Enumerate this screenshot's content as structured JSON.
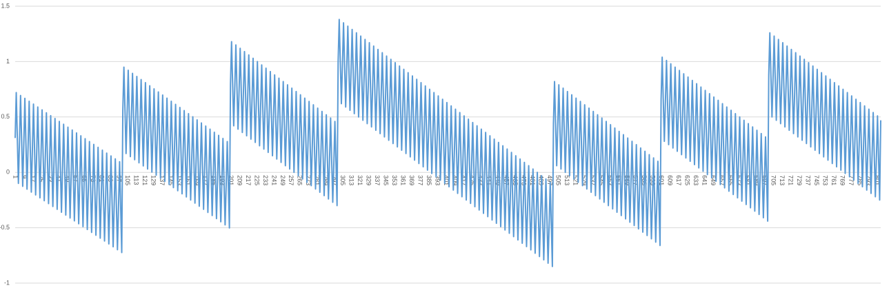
{
  "chart_data": {
    "type": "line",
    "color": "#5b9bd5",
    "grid": true,
    "ylim": [
      -1,
      1.5
    ],
    "yticks": [
      -1,
      -0.5,
      0,
      0.5,
      1,
      1.5
    ],
    "categories": [
      "1",
      null,
      null,
      null,
      null,
      null,
      null,
      null,
      "9",
      null,
      null,
      null,
      null,
      null,
      null,
      null,
      "17",
      null,
      null,
      null,
      null,
      null,
      null,
      null,
      "25",
      null,
      null,
      null,
      null,
      null,
      null,
      null,
      "33",
      null,
      null,
      null,
      null,
      null,
      null,
      null,
      "41",
      null,
      null,
      null,
      null,
      null,
      null,
      null,
      "49",
      null,
      null,
      null,
      null,
      null,
      null,
      null,
      "57",
      null,
      null,
      null,
      null,
      null,
      null,
      null,
      "65",
      null,
      null,
      null,
      null,
      null,
      null,
      null,
      "73",
      null,
      null,
      null,
      null,
      null,
      null,
      null,
      "81",
      null,
      null,
      null,
      null,
      null,
      null,
      null,
      "89",
      null,
      null,
      null,
      null,
      null,
      null,
      null,
      "97",
      null,
      null,
      null,
      null,
      null,
      null,
      null,
      "105",
      null,
      null,
      null,
      null,
      null,
      null,
      null,
      "113",
      null,
      null,
      null,
      null,
      null,
      null,
      null,
      "121",
      null,
      null,
      null,
      null,
      null,
      null,
      null,
      "129",
      null,
      null,
      null,
      null,
      null,
      null,
      null,
      "137",
      null,
      null,
      null,
      null,
      null,
      null,
      null,
      "145",
      null,
      null,
      null,
      null,
      null,
      null,
      null,
      "153",
      null,
      null,
      null,
      null,
      null,
      null,
      null,
      "161",
      null,
      null,
      null,
      null,
      null,
      null,
      null,
      "169",
      null,
      null,
      null,
      null,
      null,
      null,
      null,
      "177",
      null,
      null,
      null,
      null,
      null,
      null,
      null,
      "185",
      null,
      null,
      null,
      null,
      null,
      null,
      null,
      "193",
      null,
      null,
      null,
      null,
      null,
      null,
      null,
      "201",
      null,
      null,
      null,
      null,
      null,
      null,
      null,
      "209",
      null,
      null,
      null,
      null,
      null,
      null,
      null,
      "217",
      null,
      null,
      null,
      null,
      null,
      null,
      null,
      "225",
      null,
      null,
      null,
      null,
      null,
      null,
      null,
      "233",
      null,
      null,
      null,
      null,
      null,
      null,
      null,
      "241",
      null,
      null,
      null,
      null,
      null,
      null,
      null,
      "249",
      null,
      null,
      null,
      null,
      null,
      null,
      null,
      "257",
      null,
      null,
      null,
      null,
      null,
      null,
      null,
      "265",
      null,
      null,
      null,
      null,
      null,
      null,
      null,
      "273",
      null,
      null,
      null,
      null,
      null,
      null,
      null,
      "281",
      null,
      null,
      null,
      null,
      null,
      null,
      null,
      "289",
      null,
      null,
      null,
      null,
      null,
      null,
      null,
      "297",
      null,
      null,
      null,
      null,
      null,
      null,
      null,
      "305",
      null,
      null,
      null,
      null,
      null,
      null,
      null,
      "313",
      null,
      null,
      null,
      null,
      null,
      null,
      null,
      "321",
      null,
      null,
      null,
      null,
      null,
      null,
      null,
      "329",
      null,
      null,
      null,
      null,
      null,
      null,
      null,
      "337",
      null,
      null,
      null,
      null,
      null,
      null,
      null,
      "345",
      null,
      null,
      null,
      null,
      null,
      null,
      null,
      "353",
      null,
      null,
      null,
      null,
      null,
      null,
      null,
      "361",
      null,
      null,
      null,
      null,
      null,
      null,
      null,
      "369",
      null,
      null,
      null,
      null,
      null,
      null,
      null,
      "377",
      null,
      null,
      null,
      null,
      null,
      null,
      null,
      "385",
      null,
      null,
      null,
      null,
      null,
      null,
      null,
      "393",
      null,
      null,
      null,
      null,
      null,
      null,
      null,
      "401",
      null,
      null,
      null,
      null,
      null,
      null,
      null,
      "409",
      null,
      null,
      null,
      null,
      null,
      null,
      null,
      "417",
      null,
      null,
      null,
      null,
      null,
      null,
      null,
      "425",
      null,
      null,
      null,
      null,
      null,
      null,
      null,
      "433",
      null,
      null,
      null,
      null,
      null,
      null,
      null,
      "441",
      null,
      null,
      null,
      null,
      null,
      null,
      null,
      "449",
      null,
      null,
      null,
      null,
      null,
      null,
      null,
      "457",
      null,
      null,
      null,
      null,
      null,
      null,
      null,
      "465",
      null,
      null,
      null,
      null,
      null,
      null,
      null,
      "473",
      null,
      null,
      null,
      null,
      null,
      null,
      null,
      "481",
      null,
      null,
      null,
      null,
      null,
      null,
      null,
      "489",
      null,
      null,
      null,
      null,
      null,
      null,
      null,
      "497",
      null,
      null,
      null,
      null,
      null,
      null,
      null,
      "505",
      null,
      null,
      null,
      null,
      null,
      null,
      null,
      "513",
      null,
      null,
      null,
      null,
      null,
      null,
      null,
      "521",
      null,
      null,
      null,
      null,
      null,
      null,
      null,
      "529",
      null,
      null,
      null,
      null,
      null,
      null,
      null,
      "537",
      null,
      null,
      null,
      null,
      null,
      null,
      null,
      "545",
      null,
      null,
      null,
      null,
      null,
      null,
      null,
      "553",
      null,
      null,
      null,
      null,
      null,
      null,
      null,
      "561",
      null,
      null,
      null,
      null,
      null,
      null,
      null,
      "569",
      null,
      null,
      null,
      null,
      null,
      null,
      null,
      "577",
      null,
      null,
      null,
      null,
      null,
      null,
      null,
      "585",
      null,
      null,
      null,
      null,
      null,
      null,
      null,
      "593",
      null,
      null,
      null,
      null,
      null,
      null,
      null,
      "601",
      null,
      null,
      null,
      null,
      null,
      null,
      null,
      "609",
      null,
      null,
      null,
      null,
      null,
      null,
      null,
      "617",
      null,
      null,
      null,
      null,
      null,
      null,
      null,
      "625",
      null,
      null,
      null,
      null,
      null,
      null,
      null,
      "633",
      null,
      null,
      null,
      null,
      null,
      null,
      null,
      "641",
      null,
      null,
      null,
      null,
      null,
      null,
      null,
      "649",
      null,
      null,
      null,
      null,
      null,
      null,
      null,
      "657",
      null,
      null,
      null,
      null,
      null,
      null,
      null,
      "665",
      null,
      null,
      null,
      null,
      null,
      null,
      null,
      "673",
      null,
      null,
      null,
      null,
      null,
      null,
      null,
      "681",
      null,
      null,
      null,
      null,
      null,
      null,
      null,
      "689",
      null,
      null,
      null,
      null,
      null,
      null,
      null,
      "697",
      null,
      null,
      null,
      null,
      null,
      null,
      null,
      "705",
      null,
      null,
      null,
      null,
      null,
      null,
      null,
      "713",
      null,
      null,
      null,
      null,
      null,
      null,
      null,
      "721",
      null,
      null,
      null,
      null,
      null,
      null,
      null,
      "729",
      null,
      null,
      null,
      null,
      null,
      null,
      null,
      "737",
      null,
      null,
      null,
      null,
      null,
      null,
      null,
      "745",
      null,
      null,
      null,
      null,
      null,
      null,
      null,
      "753",
      null,
      null,
      null,
      null,
      null,
      null,
      null,
      "761",
      null,
      null,
      null,
      null,
      null,
      null,
      null,
      "769",
      null,
      null,
      null,
      null,
      null,
      null,
      null,
      "777",
      null,
      null,
      null,
      null,
      null,
      null,
      null,
      "785",
      null,
      null,
      null,
      null,
      null,
      null,
      null,
      "793",
      null,
      null,
      null,
      null,
      null,
      null,
      null,
      "801",
      null,
      null,
      null,
      null
    ],
    "values": [
      0.31,
      0.72,
      0.31,
      -0.1,
      0.284,
      0.694,
      0.284,
      -0.126,
      0.258,
      0.668,
      0.258,
      -0.152,
      0.232,
      0.642,
      0.232,
      -0.178,
      0.206,
      0.616,
      0.206,
      -0.204,
      0.18,
      0.59,
      0.18,
      -0.23,
      0.154,
      0.564,
      0.154,
      -0.256,
      0.128,
      0.538,
      0.128,
      -0.282,
      0.102,
      0.512,
      0.102,
      -0.308,
      0.076,
      0.486,
      0.076,
      -0.334,
      0.05,
      0.46,
      0.05,
      -0.36,
      0.024,
      0.434,
      0.024,
      -0.386,
      -0.002,
      0.408,
      -0.002,
      -0.412,
      -0.028,
      0.382,
      -0.028,
      -0.438,
      -0.054,
      0.356,
      -0.054,
      -0.464,
      -0.08,
      0.33,
      -0.08,
      -0.49,
      -0.106,
      0.304,
      -0.106,
      -0.516,
      -0.132,
      0.278,
      -0.132,
      -0.542,
      -0.158,
      0.252,
      -0.158,
      -0.568,
      -0.184,
      0.226,
      -0.184,
      -0.594,
      -0.21,
      0.2,
      -0.21,
      -0.62,
      -0.236,
      0.174,
      -0.236,
      -0.646,
      -0.262,
      0.148,
      -0.262,
      -0.672,
      -0.288,
      0.122,
      -0.288,
      -0.698,
      -0.314,
      0.096,
      -0.314,
      -0.724,
      0.56,
      0.95,
      0.56,
      0.17,
      0.532,
      0.922,
      0.532,
      0.142,
      0.504,
      0.894,
      0.504,
      0.114,
      0.476,
      0.866,
      0.476,
      0.086,
      0.448,
      0.838,
      0.448,
      0.058,
      0.42,
      0.81,
      0.42,
      0.03,
      0.392,
      0.782,
      0.392,
      0.002,
      0.364,
      0.754,
      0.364,
      -0.026,
      0.336,
      0.726,
      0.336,
      -0.054,
      0.308,
      0.698,
      0.308,
      -0.082,
      0.28,
      0.67,
      0.28,
      -0.11,
      0.252,
      0.642,
      0.252,
      -0.138,
      0.224,
      0.614,
      0.224,
      -0.166,
      0.196,
      0.586,
      0.196,
      -0.194,
      0.168,
      0.558,
      0.168,
      -0.222,
      0.14,
      0.53,
      0.14,
      -0.25,
      0.112,
      0.502,
      0.112,
      -0.278,
      0.084,
      0.474,
      0.084,
      -0.306,
      0.056,
      0.446,
      0.056,
      -0.334,
      0.028,
      0.418,
      0.028,
      -0.362,
      0,
      0.39,
      0,
      -0.39,
      -0.028,
      0.362,
      -0.028,
      -0.418,
      -0.056,
      0.334,
      -0.056,
      -0.446,
      -0.084,
      0.306,
      -0.084,
      -0.474,
      -0.112,
      0.278,
      -0.112,
      -0.502,
      0.8,
      1.18,
      0.8,
      0.42,
      0.77,
      1.15,
      0.77,
      0.39,
      0.74,
      1.12,
      0.74,
      0.36,
      0.71,
      1.09,
      0.71,
      0.33,
      0.68,
      1.06,
      0.68,
      0.3,
      0.65,
      1.03,
      0.65,
      0.27,
      0.62,
      1,
      0.62,
      0.24,
      0.59,
      0.97,
      0.59,
      0.21,
      0.56,
      0.94,
      0.56,
      0.18,
      0.53,
      0.91,
      0.53,
      0.15,
      0.5,
      0.88,
      0.5,
      0.12,
      0.47,
      0.85,
      0.47,
      0.09,
      0.44,
      0.82,
      0.44,
      0.06,
      0.41,
      0.79,
      0.41,
      0.03,
      0.38,
      0.76,
      0.38,
      0,
      0.35,
      0.73,
      0.35,
      -0.03,
      0.32,
      0.7,
      0.32,
      -0.06,
      0.29,
      0.67,
      0.29,
      -0.09,
      0.26,
      0.64,
      0.26,
      -0.12,
      0.23,
      0.61,
      0.23,
      -0.15,
      0.2,
      0.58,
      0.2,
      -0.18,
      0.17,
      0.55,
      0.17,
      -0.21,
      0.14,
      0.52,
      0.14,
      -0.24,
      0.11,
      0.49,
      0.11,
      -0.27,
      0.08,
      0.46,
      0.08,
      -0.3,
      1,
      1.38,
      1,
      0.62,
      0.97,
      1.35,
      0.97,
      0.59,
      0.94,
      1.32,
      0.94,
      0.56,
      0.91,
      1.29,
      0.91,
      0.53,
      0.88,
      1.26,
      0.88,
      0.5,
      0.85,
      1.23,
      0.85,
      0.47,
      0.82,
      1.2,
      0.82,
      0.44,
      0.79,
      1.17,
      0.79,
      0.41,
      0.76,
      1.14,
      0.76,
      0.38,
      0.73,
      1.11,
      0.73,
      0.35,
      0.7,
      1.08,
      0.7,
      0.32,
      0.67,
      1.05,
      0.67,
      0.29,
      0.64,
      1.02,
      0.64,
      0.26,
      0.61,
      0.99,
      0.61,
      0.23,
      0.58,
      0.96,
      0.58,
      0.2,
      0.55,
      0.93,
      0.55,
      0.17,
      0.52,
      0.9,
      0.52,
      0.14,
      0.49,
      0.87,
      0.49,
      0.11,
      0.46,
      0.84,
      0.46,
      0.08,
      0.43,
      0.81,
      0.43,
      0.05,
      0.4,
      0.78,
      0.4,
      0.02,
      0.37,
      0.75,
      0.37,
      -0.01,
      0.34,
      0.72,
      0.34,
      -0.04,
      0.31,
      0.69,
      0.31,
      -0.07,
      0.28,
      0.66,
      0.28,
      -0.1,
      0.25,
      0.63,
      0.25,
      -0.13,
      0.22,
      0.6,
      0.22,
      -0.16,
      0.19,
      0.57,
      0.19,
      -0.19,
      0.16,
      0.54,
      0.16,
      -0.22,
      0.13,
      0.51,
      0.13,
      -0.25,
      0.1,
      0.48,
      0.1,
      -0.28,
      0.07,
      0.45,
      0.07,
      -0.31,
      0.04,
      0.42,
      0.04,
      -0.34,
      0.01,
      0.39,
      0.01,
      -0.37,
      -0.02,
      0.36,
      -0.02,
      -0.4,
      -0.05,
      0.33,
      -0.05,
      -0.43,
      -0.08,
      0.3,
      -0.08,
      -0.46,
      -0.11,
      0.27,
      -0.11,
      -0.49,
      -0.14,
      0.24,
      -0.14,
      -0.52,
      -0.17,
      0.21,
      -0.17,
      -0.55,
      -0.2,
      0.18,
      -0.2,
      -0.58,
      -0.23,
      0.15,
      -0.23,
      -0.61,
      -0.26,
      0.12,
      -0.26,
      -0.64,
      -0.29,
      0.09,
      -0.29,
      -0.67,
      -0.32,
      0.06,
      -0.32,
      -0.7,
      -0.35,
      0.03,
      -0.35,
      -0.73,
      -0.38,
      0,
      -0.38,
      -0.76,
      -0.41,
      -0.03,
      -0.41,
      -0.79,
      -0.44,
      -0.06,
      -0.44,
      -0.82,
      -0.47,
      -0.09,
      -0.47,
      -0.85,
      0.44,
      0.82,
      0.44,
      0.06,
      0.41,
      0.79,
      0.41,
      0.03,
      0.38,
      0.76,
      0.38,
      0,
      0.35,
      0.73,
      0.35,
      -0.03,
      0.32,
      0.7,
      0.32,
      -0.06,
      0.29,
      0.67,
      0.29,
      -0.09,
      0.26,
      0.64,
      0.26,
      -0.12,
      0.23,
      0.61,
      0.23,
      -0.15,
      0.2,
      0.58,
      0.2,
      -0.18,
      0.17,
      0.55,
      0.17,
      -0.21,
      0.14,
      0.52,
      0.14,
      -0.24,
      0.11,
      0.49,
      0.11,
      -0.27,
      0.08,
      0.46,
      0.08,
      -0.3,
      0.05,
      0.43,
      0.05,
      -0.33,
      0.02,
      0.4,
      0.02,
      -0.36,
      -0.01,
      0.37,
      -0.01,
      -0.39,
      -0.04,
      0.34,
      -0.04,
      -0.42,
      -0.07,
      0.31,
      -0.07,
      -0.45,
      -0.1,
      0.28,
      -0.1,
      -0.48,
      -0.13,
      0.25,
      -0.13,
      -0.51,
      -0.16,
      0.22,
      -0.16,
      -0.54,
      -0.19,
      0.19,
      -0.19,
      -0.57,
      -0.22,
      0.16,
      -0.22,
      -0.6,
      -0.25,
      0.13,
      -0.25,
      -0.63,
      -0.28,
      0.1,
      -0.28,
      -0.66,
      0.66,
      1.04,
      0.66,
      0.28,
      0.63,
      1.01,
      0.63,
      0.25,
      0.6,
      0.98,
      0.6,
      0.22,
      0.57,
      0.95,
      0.57,
      0.19,
      0.54,
      0.92,
      0.54,
      0.16,
      0.51,
      0.89,
      0.51,
      0.13,
      0.48,
      0.86,
      0.48,
      0.1,
      0.45,
      0.83,
      0.45,
      0.07,
      0.42,
      0.8,
      0.42,
      0.04,
      0.39,
      0.77,
      0.39,
      0.01,
      0.36,
      0.74,
      0.36,
      -0.02,
      0.33,
      0.71,
      0.33,
      -0.05,
      0.3,
      0.68,
      0.3,
      -0.08,
      0.27,
      0.65,
      0.27,
      -0.11,
      0.24,
      0.62,
      0.24,
      -0.14,
      0.21,
      0.59,
      0.21,
      -0.17,
      0.18,
      0.56,
      0.18,
      -0.2,
      0.15,
      0.53,
      0.15,
      -0.23,
      0.12,
      0.5,
      0.12,
      -0.26,
      0.09,
      0.47,
      0.09,
      -0.29,
      0.06,
      0.44,
      0.06,
      -0.32,
      0.03,
      0.41,
      0.03,
      -0.35,
      0,
      0.38,
      0,
      -0.38,
      -0.03,
      0.35,
      -0.03,
      -0.41,
      -0.06,
      0.32,
      -0.06,
      -0.44,
      0.88,
      1.26,
      0.88,
      0.5,
      0.85,
      1.23,
      0.85,
      0.47,
      0.82,
      1.2,
      0.82,
      0.44,
      0.79,
      1.17,
      0.79,
      0.41,
      0.76,
      1.14,
      0.76,
      0.38,
      0.73,
      1.11,
      0.73,
      0.35,
      0.7,
      1.08,
      0.7,
      0.32,
      0.67,
      1.05,
      0.67,
      0.29,
      0.64,
      1.02,
      0.64,
      0.26,
      0.61,
      0.99,
      0.61,
      0.23,
      0.58,
      0.96,
      0.58,
      0.2,
      0.55,
      0.93,
      0.55,
      0.17,
      0.52,
      0.9,
      0.52,
      0.14,
      0.49,
      0.87,
      0.49,
      0.11,
      0.46,
      0.84,
      0.46,
      0.08,
      0.43,
      0.81,
      0.43,
      0.05,
      0.4,
      0.78,
      0.4,
      0.02,
      0.37,
      0.75,
      0.37,
      -0.01,
      0.34,
      0.72,
      0.34,
      -0.04,
      0.31,
      0.69,
      0.31,
      -0.07,
      0.28,
      0.66,
      0.28,
      -0.1,
      0.25,
      0.63,
      0.25,
      -0.13,
      0.22,
      0.6,
      0.22,
      -0.16,
      0.19,
      0.57,
      0.19,
      -0.19,
      0.16,
      0.54,
      0.16,
      -0.22,
      0.13,
      0.51,
      0.13,
      -0.25,
      0.47
    ]
  }
}
